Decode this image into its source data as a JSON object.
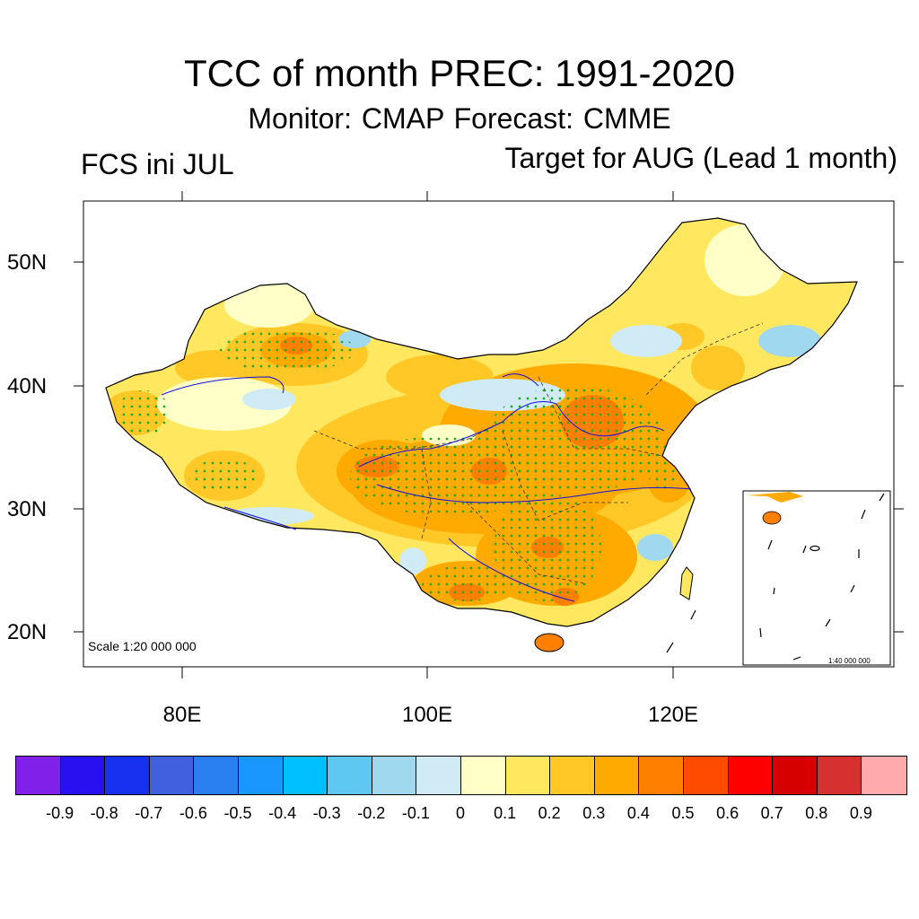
{
  "title": "TCC of month PREC: 1991-2020",
  "subtitle": "Monitor: CMAP   Forecast: CMME",
  "left_label": "FCS ini JUL",
  "right_label": "Target for AUG (Lead 1 month)",
  "map": {
    "lat_labels": [
      "50N",
      "40N",
      "30N",
      "20N"
    ],
    "lon_labels": [
      "80E",
      "100E",
      "120E"
    ],
    "scale_main": "Scale 1:20 000 000",
    "scale_inset": "1:40 000 000",
    "significance_dot_color": "#22aa22"
  },
  "colorbar": {
    "colors": [
      "#8020e8",
      "#2810f0",
      "#1830f0",
      "#4060e0",
      "#2a7ff0",
      "#1a96ff",
      "#00bfff",
      "#5ec8f2",
      "#a0d8f0",
      "#d0eaf6",
      "#ffffc8",
      "#ffe860",
      "#ffc826",
      "#ffaa00",
      "#ff8000",
      "#ff4b00",
      "#ff0000",
      "#d70000",
      "#d73030",
      "#ffaaaa"
    ],
    "labels": [
      "-0.9",
      "-0.8",
      "-0.7",
      "-0.6",
      "-0.5",
      "-0.4",
      "-0.3",
      "-0.2",
      "-0.1",
      "0",
      "0.1",
      "0.2",
      "0.3",
      "0.4",
      "0.5",
      "0.6",
      "0.7",
      "0.8",
      "0.9"
    ]
  }
}
